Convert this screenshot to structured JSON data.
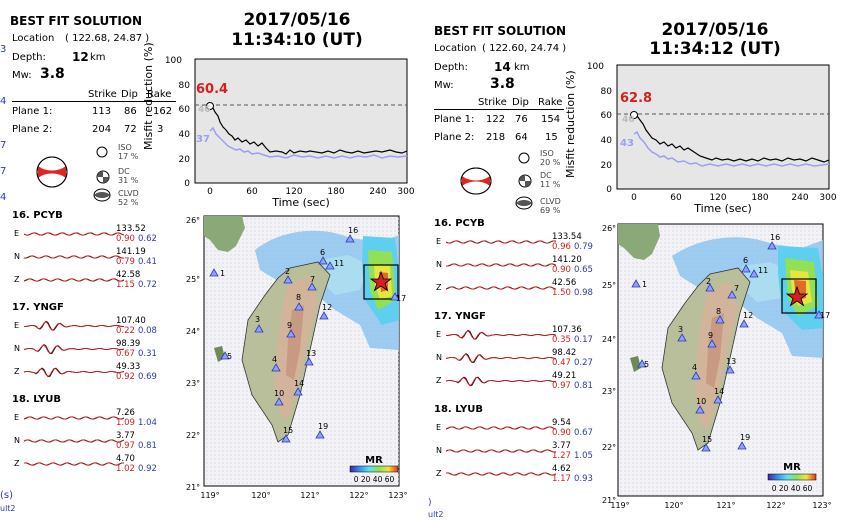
{
  "panels": [
    {
      "id": "left",
      "title": "BEST FIT SOLUTION",
      "location_label": "Location",
      "location_value": "( 122.68, 24.87 )",
      "depth_label": "Depth:",
      "depth_value": "12",
      "depth_unit": "km",
      "mw_label": "Mw:",
      "mw_value": "3.8",
      "table": {
        "headers": [
          "Strike",
          "Dip",
          "Rake"
        ],
        "rows": [
          {
            "label": "Plane 1:",
            "values": [
              "113",
              "86",
              "162"
            ]
          },
          {
            "label": "Plane 2:",
            "values": [
              "204",
              "72",
              "3"
            ]
          }
        ]
      },
      "components": [
        {
          "name": "ISO",
          "pct": "17 %"
        },
        {
          "name": "DC",
          "pct": "31 %"
        },
        {
          "name": "CLVD",
          "pct": "52 %"
        }
      ],
      "date": "2017/05/16",
      "time": "11:34:10  (UT)",
      "misfit": {
        "ylabel": "Misfit reduction (%)",
        "xlabel": "Time (sec)",
        "yticks": [
          "0",
          "20",
          "40",
          "60",
          "80",
          "100"
        ],
        "xticks": [
          "0",
          "60",
          "120",
          "180",
          "240",
          "300"
        ],
        "peak_value": "60.4",
        "value_46": "46",
        "value_37": "37"
      },
      "stations": [
        {
          "header": "16. PCYB",
          "traces": [
            {
              "comp": "E",
              "amp": "133.52",
              "cc": "0.90",
              "vr": "0.62"
            },
            {
              "comp": "N",
              "amp": "141.19",
              "cc": "0.79",
              "vr": "0.41"
            },
            {
              "comp": "Z",
              "amp": "42.58",
              "cc": "1.15",
              "vr": "0.72"
            }
          ]
        },
        {
          "header": "17. YNGF",
          "traces": [
            {
              "comp": "E",
              "amp": "107.40",
              "cc": "0.22",
              "vr": "0.08"
            },
            {
              "comp": "N",
              "amp": "98.39",
              "cc": "0.67",
              "vr": "0.31"
            },
            {
              "comp": "Z",
              "amp": "49.33",
              "cc": "0.92",
              "vr": "0.69"
            }
          ]
        },
        {
          "header": "18. LYUB",
          "traces": [
            {
              "comp": "E",
              "amp": "7.26",
              "cc": "1.09",
              "vr": "1.04"
            },
            {
              "comp": "N",
              "amp": "3.77",
              "cc": "0.97",
              "vr": "0.81"
            },
            {
              "comp": "Z",
              "amp": "4.70",
              "cc": "1.02",
              "vr": "0.92"
            }
          ]
        }
      ],
      "map": {
        "lat_labels": [
          "26°",
          "25°",
          "24°",
          "23°",
          "22°",
          "21°"
        ],
        "lon_labels": [
          "119°",
          "120°",
          "121°",
          "122°",
          "123°"
        ],
        "station_labels": [
          "1",
          "2",
          "3",
          "4",
          "5",
          "6",
          "7",
          "8",
          "9",
          "10",
          "11",
          "12",
          "13",
          "14",
          "15",
          "16",
          "17",
          "19"
        ],
        "mr_title": "MR",
        "mr_ticks": "0 20 40 60"
      },
      "footer_left": "(s)",
      "footer_left2": "ult2"
    },
    {
      "id": "right",
      "title": "BEST FIT SOLUTION",
      "location_label": "Location",
      "location_value": "( 122.60, 24.74 )",
      "depth_label": "Depth:",
      "depth_value": "14",
      "depth_unit": "km",
      "mw_label": "Mw:",
      "mw_value": "3.8",
      "table": {
        "headers": [
          "Strike",
          "Dip",
          "Rake"
        ],
        "rows": [
          {
            "label": "Plane 1:",
            "values": [
              "122",
              "76",
              "154"
            ]
          },
          {
            "label": "Plane 2:",
            "values": [
              "218",
              "64",
              "15"
            ]
          }
        ]
      },
      "components": [
        {
          "name": "ISO",
          "pct": "20 %"
        },
        {
          "name": "DC",
          "pct": "11 %"
        },
        {
          "name": "CLVD",
          "pct": "69 %"
        }
      ],
      "date": "2017/05/16",
      "time": "11:34:12  (UT)",
      "misfit": {
        "ylabel": "Misfit reduction (%)",
        "xlabel": "Time (sec)",
        "yticks": [
          "0",
          "20",
          "40",
          "60",
          "80",
          "100"
        ],
        "xticks": [
          "0",
          "60",
          "120",
          "180",
          "240",
          "300"
        ],
        "peak_value": "62.8",
        "value_46": "46",
        "value_37": "43"
      },
      "stations": [
        {
          "header": "16. PCYB",
          "traces": [
            {
              "comp": "E",
              "amp": "133.54",
              "cc": "0.96",
              "vr": "0.79"
            },
            {
              "comp": "N",
              "amp": "141.20",
              "cc": "0.90",
              "vr": "0.65"
            },
            {
              "comp": "Z",
              "amp": "42.56",
              "cc": "1.50",
              "vr": "0.98"
            }
          ]
        },
        {
          "header": "17. YNGF",
          "traces": [
            {
              "comp": "E",
              "amp": "107.36",
              "cc": "0.35",
              "vr": "0.17"
            },
            {
              "comp": "N",
              "amp": "98.42",
              "cc": "0.47",
              "vr": "0.27"
            },
            {
              "comp": "Z",
              "amp": "49.21",
              "cc": "0.97",
              "vr": "0.81"
            }
          ]
        },
        {
          "header": "18. LYUB",
          "traces": [
            {
              "comp": "E",
              "amp": "9.54",
              "cc": "0.90",
              "vr": "0.67"
            },
            {
              "comp": "N",
              "amp": "3.77",
              "cc": "1.27",
              "vr": "1.05"
            },
            {
              "comp": "Z",
              "amp": "4.62",
              "cc": "1.17",
              "vr": "0.93"
            }
          ]
        }
      ],
      "map": {
        "lat_labels": [
          "26°",
          "25°",
          "24°",
          "23°",
          "22°",
          "21°"
        ],
        "lon_labels": [
          "119°",
          "120°",
          "121°",
          "122°",
          "123°"
        ],
        "station_labels": [
          "1",
          "2",
          "3",
          "4",
          "5",
          "6",
          "7",
          "8",
          "9",
          "10",
          "11",
          "12",
          "13",
          "14",
          "15",
          "16",
          "17",
          "19"
        ],
        "mr_title": "MR",
        "mr_ticks": "0 20 40 60"
      },
      "footer_left": ")",
      "footer_left2": "ult2"
    }
  ],
  "left_edge_numbers": [
    "3",
    "4",
    "7",
    "7",
    "4",
    "5",
    "2",
    "8",
    "9",
    "9",
    "4",
    "1",
    "4"
  ]
}
